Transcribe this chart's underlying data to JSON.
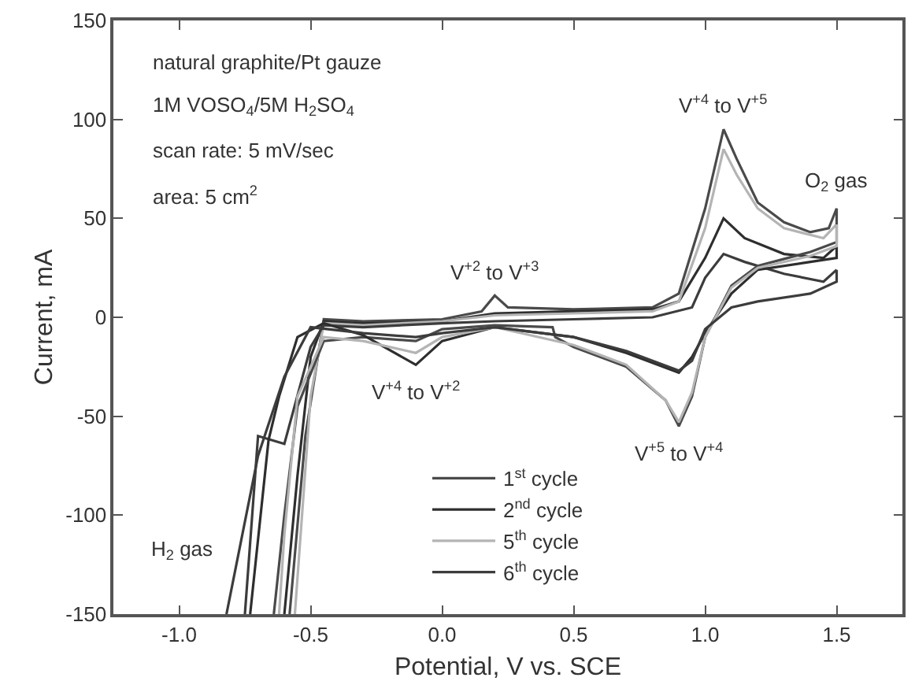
{
  "chart_data": {
    "type": "line",
    "xlabel": "Potential, V vs. SCE",
    "ylabel": "Current, mA",
    "xlim": [
      -1.25,
      1.75
    ],
    "ylim": [
      -150,
      150
    ],
    "xticks": [
      {
        "value": -1.0,
        "label": "-1.0"
      },
      {
        "value": -0.5,
        "label": "-0.5"
      },
      {
        "value": 0,
        "label": "0.0"
      },
      {
        "value": 0.5,
        "label": "0.5"
      },
      {
        "value": 1.0,
        "label": "1.0"
      },
      {
        "value": 1.5,
        "label": "1.5"
      }
    ],
    "yticks": [
      -150,
      -100,
      -50,
      0,
      50,
      100,
      150
    ],
    "legend": "bottom",
    "line_style": "solid",
    "marker": "none",
    "series": [
      {
        "name": "1$^{st}$ cycle",
        "color": "#4a4a4a",
        "x": [
          -0.58,
          -0.52,
          -0.45,
          -0.3,
          0,
          0.15,
          0.2,
          0.25,
          0.5,
          0.8,
          0.9,
          1.0,
          1.07,
          1.12,
          1.2,
          1.3,
          1.4,
          1.47,
          1.5
        ],
        "values": [
          -150,
          -60,
          -1,
          -2,
          -1,
          3,
          11,
          5,
          4,
          5,
          12,
          55,
          95,
          80,
          58,
          48,
          43,
          45,
          55
        ]
      },
      {
        "name": "2$^{nd}$ cycle",
        "color": "#2e2e2e",
        "x": [
          -0.6,
          -0.55,
          -0.5,
          -0.45,
          -0.3,
          0,
          0.2,
          0.5,
          0.8,
          0.9,
          1.0,
          1.07,
          1.15,
          1.3,
          1.45,
          1.5
        ],
        "values": [
          -150,
          -80,
          -20,
          -2,
          -3,
          -2,
          2,
          3,
          4,
          8,
          30,
          50,
          40,
          32,
          30,
          36
        ]
      },
      {
        "name": "5$^{th}$ cycle",
        "color": "#b4b4b4",
        "x": [
          -0.56,
          -0.5,
          -0.45,
          -0.3,
          0,
          0.2,
          0.5,
          0.8,
          0.9,
          1.0,
          1.07,
          1.12,
          1.2,
          1.3,
          1.45,
          1.5
        ],
        "values": [
          -150,
          -40,
          -3,
          -4,
          -2,
          1,
          2,
          3,
          8,
          45,
          85,
          72,
          55,
          45,
          40,
          47
        ]
      },
      {
        "name": "6$^{th}$ cycle",
        "color": "#3c3c3c",
        "x": [
          -0.75,
          -0.7,
          -0.6,
          -0.5,
          -0.45,
          -0.3,
          0,
          0.2,
          0.5,
          0.8,
          0.95,
          1.0,
          1.07,
          1.15,
          1.3,
          1.45,
          1.5
        ],
        "values": [
          -150,
          -60,
          -64,
          -15,
          -4,
          -5,
          -3,
          -2,
          -1,
          0,
          5,
          20,
          32,
          28,
          22,
          18,
          24
        ]
      },
      {
        "color": "#4a4a4a",
        "x": [
          1.5,
          1.5,
          1.4,
          1.2,
          1.1,
          1.0,
          0.95,
          0.9,
          0.85,
          0.7,
          0.5,
          0.43,
          0.42,
          0.2,
          0,
          -0.1,
          -0.3,
          -0.45,
          -0.55,
          -0.6,
          -0.64
        ],
        "values": [
          55,
          38,
          33,
          26,
          16,
          -10,
          -40,
          -55,
          -42,
          -25,
          -15,
          -10,
          -5,
          -4,
          -6,
          -12,
          -10,
          -12,
          -45,
          -100,
          -150
        ]
      },
      {
        "color": "#2e2e2e",
        "x": [
          1.5,
          1.5,
          1.4,
          1.2,
          1.1,
          1.0,
          0.95,
          0.9,
          0.7,
          0.5,
          0.2,
          0,
          -0.1,
          -0.3,
          -0.45,
          -0.55,
          -0.62,
          -0.66,
          -0.73
        ],
        "values": [
          36,
          30,
          28,
          24,
          12,
          -8,
          -20,
          -28,
          -18,
          -10,
          -5,
          -12,
          -24,
          -9,
          -3,
          -10,
          -40,
          -62,
          -150
        ]
      },
      {
        "color": "#b4b4b4",
        "x": [
          1.5,
          1.5,
          1.4,
          1.2,
          1.1,
          1.0,
          0.95,
          0.9,
          0.85,
          0.7,
          0.5,
          0.2,
          0,
          -0.1,
          -0.3,
          -0.45,
          -0.55,
          -0.6,
          -0.62
        ],
        "values": [
          47,
          36,
          31,
          25,
          15,
          -10,
          -38,
          -53,
          -42,
          -24,
          -14,
          -5,
          -10,
          -18,
          -12,
          -10,
          -40,
          -110,
          -150
        ]
      },
      {
        "color": "#3c3c3c",
        "x": [
          1.5,
          1.5,
          1.4,
          1.2,
          1.1,
          1.0,
          0.95,
          0.9,
          0.7,
          0.5,
          0.2,
          0,
          -0.1,
          -0.3,
          -0.5,
          -0.6,
          -0.7,
          -0.82
        ],
        "values": [
          24,
          18,
          12,
          8,
          5,
          -6,
          -22,
          -27,
          -17,
          -10,
          -5,
          -8,
          -10,
          -8,
          -5,
          -30,
          -70,
          -150
        ]
      }
    ],
    "annotations": [
      "natural graphite/Pt gauze",
      "1M VOSO$_{4}$/5M H$_{2}$SO$_{4}$",
      "scan rate: 5 mV/sec",
      "area: 5 cm$^{2}$",
      {
        "text": "V$^{+4}$ to V$^{+5}$",
        "x": 1.07,
        "y": 95
      },
      {
        "text": "V$^{+5}$ to V$^{+4}$",
        "x": 0.9,
        "y": -55
      },
      {
        "text": "V$^{+2}$ to V$^{+3}$",
        "x": 0.2,
        "y": 11
      },
      {
        "text": "V$^{+4}$ to V$^{+2}$",
        "x": -0.1,
        "y": -24
      },
      {
        "text": "O$_{2}$ gas",
        "x": 1.5,
        "y": 55
      },
      {
        "text": "H$_{2}$ gas",
        "x": -0.82,
        "y": -150
      }
    ]
  }
}
